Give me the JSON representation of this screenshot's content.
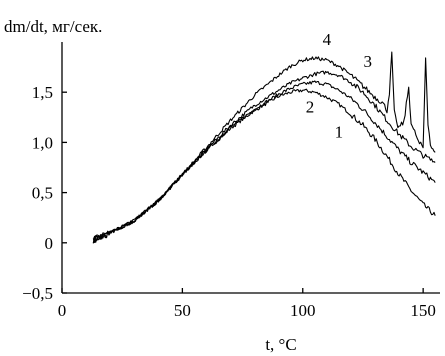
{
  "chart_data": {
    "type": "line",
    "xlabel": "t, °C",
    "ylabel": "dm/dt, мг/сек.",
    "xlim": [
      0,
      157
    ],
    "ylim": [
      -0.5,
      2.0
    ],
    "x_ticks": [
      0,
      50,
      100,
      150
    ],
    "x_tick_labels": [
      "0",
      "50",
      "100",
      "150"
    ],
    "y_ticks": [
      -0.5,
      0,
      0.5,
      1.0,
      1.5
    ],
    "y_tick_labels": [
      "−0,5",
      "0",
      "0,5",
      "1,0",
      "1,5"
    ],
    "grid": false,
    "series": [
      {
        "name": "1",
        "x": [
          13,
          20,
          30,
          40,
          50,
          60,
          70,
          80,
          90,
          95,
          100,
          105,
          110,
          115,
          120,
          125,
          130,
          135,
          140,
          145,
          150,
          155
        ],
        "y": [
          0.03,
          0.1,
          0.22,
          0.42,
          0.68,
          0.92,
          1.14,
          1.32,
          1.46,
          1.5,
          1.52,
          1.5,
          1.45,
          1.38,
          1.28,
          1.17,
          1.03,
          0.86,
          0.68,
          0.52,
          0.38,
          0.27
        ],
        "label_xy": [
          115,
          1.05
        ]
      },
      {
        "name": "2",
        "x": [
          13,
          20,
          30,
          40,
          50,
          60,
          70,
          80,
          90,
          95,
          100,
          105,
          110,
          115,
          120,
          125,
          130,
          135,
          140,
          145,
          150,
          155
        ],
        "y": [
          0.03,
          0.1,
          0.22,
          0.42,
          0.68,
          0.92,
          1.15,
          1.33,
          1.48,
          1.54,
          1.58,
          1.6,
          1.58,
          1.52,
          1.44,
          1.33,
          1.2,
          1.06,
          0.92,
          0.8,
          0.7,
          0.6
        ],
        "label_xy": [
          103,
          1.3
        ]
      },
      {
        "name": "3",
        "x": [
          13,
          20,
          30,
          40,
          50,
          60,
          70,
          80,
          90,
          95,
          100,
          105,
          110,
          115,
          120,
          125,
          130,
          135,
          140,
          145,
          150,
          155
        ],
        "y": [
          0.03,
          0.1,
          0.22,
          0.42,
          0.68,
          0.93,
          1.17,
          1.37,
          1.52,
          1.59,
          1.64,
          1.68,
          1.7,
          1.67,
          1.6,
          1.5,
          1.37,
          1.22,
          1.08,
          0.96,
          0.87,
          0.8
        ],
        "label_xy": [
          127,
          1.75
        ]
      },
      {
        "name": "4",
        "x": [
          13,
          20,
          30,
          40,
          50,
          60,
          70,
          80,
          90,
          95,
          100,
          105,
          110,
          115,
          120,
          125,
          130,
          133,
          135,
          136,
          137,
          138,
          139,
          140,
          142,
          144,
          145,
          146,
          147,
          148,
          150,
          151,
          152,
          153,
          154,
          155
        ],
        "y": [
          0.03,
          0.1,
          0.22,
          0.42,
          0.68,
          0.95,
          1.22,
          1.47,
          1.67,
          1.76,
          1.82,
          1.84,
          1.82,
          1.76,
          1.67,
          1.56,
          1.45,
          1.4,
          1.32,
          1.5,
          1.88,
          1.3,
          1.18,
          1.15,
          1.2,
          1.55,
          1.2,
          1.12,
          1.08,
          1.0,
          0.95,
          1.85,
          1.2,
          0.98,
          0.92,
          0.9
        ],
        "label_xy": [
          110,
          1.97
        ]
      }
    ]
  }
}
